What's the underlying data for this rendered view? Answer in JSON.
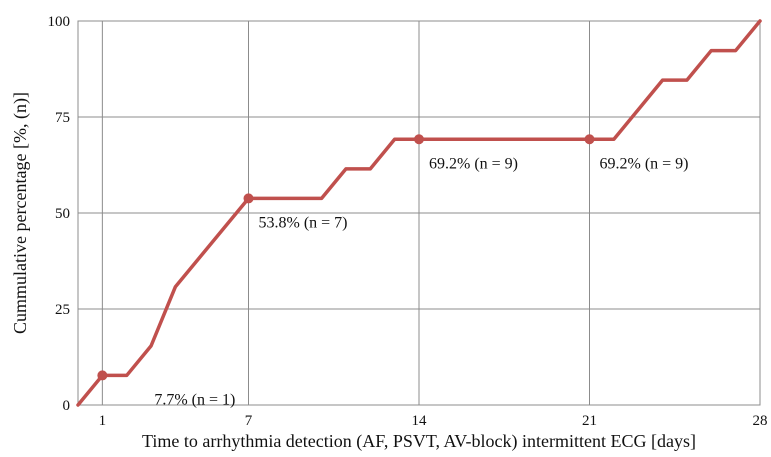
{
  "chart_data": {
    "type": "line",
    "title": "",
    "xlabel": "Time to arrhythmia detection (AF, PSVT, AV-block) intermittent ECG [days]",
    "ylabel": "Cummulative percentage [%, (n)]",
    "xlim": [
      0,
      28
    ],
    "ylim": [
      0,
      100
    ],
    "x_ticks": [
      1,
      7,
      14,
      21,
      28
    ],
    "y_ticks": [
      0,
      25,
      50,
      75,
      100
    ],
    "grid": true,
    "legend": "none",
    "series": [
      {
        "color": "#c0504d",
        "x": [
          0,
          1,
          2,
          3,
          4,
          7,
          10,
          11,
          12,
          13,
          14,
          21,
          22,
          24,
          25,
          26,
          27,
          28
        ],
        "y": [
          0,
          7.7,
          7.7,
          15.4,
          30.8,
          53.8,
          53.8,
          61.5,
          61.5,
          69.2,
          69.2,
          69.2,
          69.2,
          84.6,
          84.6,
          92.3,
          92.3,
          100
        ]
      }
    ],
    "markers": [
      {
        "x": 1,
        "y": 7.7
      },
      {
        "x": 7,
        "y": 53.8
      },
      {
        "x": 14,
        "y": 69.2
      },
      {
        "x": 21,
        "y": 69.2
      }
    ],
    "annotations": [
      {
        "text": "7.7% (n = 1)",
        "x": 1,
        "y": 7.7,
        "position": "below-right"
      },
      {
        "text": "53.8% (n = 7)",
        "x": 7,
        "y": 53.8,
        "position": "below-right"
      },
      {
        "text": "69.2% (n = 9)",
        "x": 14,
        "y": 69.2,
        "position": "below-right"
      },
      {
        "text": "69.2% (n = 9)",
        "x": 21,
        "y": 69.2,
        "position": "below-right"
      }
    ]
  }
}
